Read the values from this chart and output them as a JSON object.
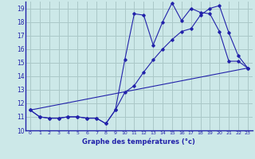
{
  "xlabel": "Graphe des températures (°c)",
  "bg_color": "#cce8e8",
  "grid_color": "#aac8c8",
  "line_color": "#2222aa",
  "xlim": [
    -0.5,
    23.5
  ],
  "ylim": [
    10,
    19.5
  ],
  "xticks": [
    0,
    1,
    2,
    3,
    4,
    5,
    6,
    7,
    8,
    9,
    10,
    11,
    12,
    13,
    14,
    15,
    16,
    17,
    18,
    19,
    20,
    21,
    22,
    23
  ],
  "yticks": [
    10,
    11,
    12,
    13,
    14,
    15,
    16,
    17,
    18,
    19
  ],
  "line1_x": [
    0,
    1,
    2,
    3,
    4,
    5,
    6,
    7,
    8,
    9,
    10,
    11,
    12,
    13,
    14,
    15,
    16,
    17,
    18,
    19,
    20,
    21,
    22,
    23
  ],
  "line1_y": [
    11.5,
    11.0,
    10.9,
    10.9,
    11.0,
    11.0,
    10.9,
    10.9,
    10.5,
    11.5,
    15.2,
    18.6,
    18.5,
    16.3,
    18.0,
    19.4,
    18.1,
    19.0,
    18.7,
    18.6,
    17.3,
    15.1,
    15.1,
    14.6
  ],
  "line2_x": [
    0,
    1,
    2,
    3,
    4,
    5,
    6,
    7,
    8,
    9,
    10,
    11,
    12,
    13,
    14,
    15,
    16,
    17,
    18,
    19,
    20,
    21,
    22,
    23
  ],
  "line2_y": [
    11.5,
    11.0,
    10.9,
    10.9,
    11.0,
    11.0,
    10.9,
    10.9,
    10.5,
    11.5,
    12.8,
    13.3,
    14.3,
    15.2,
    16.0,
    16.7,
    17.3,
    17.5,
    18.5,
    19.0,
    19.2,
    17.2,
    15.5,
    14.6
  ],
  "line3_x": [
    0,
    23
  ],
  "line3_y": [
    11.5,
    14.6
  ],
  "xlabel_fontsize": 6.0,
  "xtick_fontsize": 4.5,
  "ytick_fontsize": 5.5
}
